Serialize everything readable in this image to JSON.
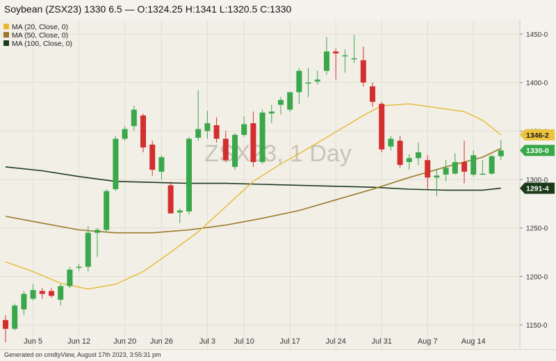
{
  "header": {
    "title": "Soybean (ZSX23) 1330 6.5 — O:1324.25 H:1341 L:1320.5 C:1330"
  },
  "footer": {
    "note": "Generated on cmdtyView, August 17th 2023, 3:55:31 pm"
  },
  "chart_data": {
    "type": "candlestick",
    "watermark": "ZSX23, 1 Day",
    "legend": [
      {
        "label": "MA (20, Close, 0)",
        "color": "#e8b830"
      },
      {
        "label": "MA (50, Close, 0)",
        "color": "#9a7a28"
      },
      {
        "label": "MA (100, Close, 0)",
        "color": "#1a3a1a"
      }
    ],
    "y_axis": {
      "min": 1125,
      "max": 1465,
      "ticks": [
        "1150-0",
        "1200-0",
        "1250-0",
        "1300-0",
        "1350-0",
        "1400-0",
        "1450-0"
      ]
    },
    "x_ticks": [
      {
        "index": 3,
        "label": "Jun 5"
      },
      {
        "index": 8,
        "label": "Jun 12"
      },
      {
        "index": 13,
        "label": "Jun 20"
      },
      {
        "index": 17,
        "label": "Jun 26"
      },
      {
        "index": 22,
        "label": "Jul 3"
      },
      {
        "index": 26,
        "label": "Jul 10"
      },
      {
        "index": 31,
        "label": "Jul 17"
      },
      {
        "index": 36,
        "label": "Jul 24"
      },
      {
        "index": 41,
        "label": "Jul 31"
      },
      {
        "index": 46,
        "label": "Aug 7"
      },
      {
        "index": 51,
        "label": "Aug 14"
      }
    ],
    "candles": [
      {
        "o": 1155,
        "h": 1160,
        "l": 1132,
        "c": 1146
      },
      {
        "o": 1146,
        "h": 1172,
        "l": 1144,
        "c": 1170
      },
      {
        "o": 1166,
        "h": 1185,
        "l": 1160,
        "c": 1182
      },
      {
        "o": 1177,
        "h": 1192,
        "l": 1175,
        "c": 1186
      },
      {
        "o": 1185,
        "h": 1188,
        "l": 1177,
        "c": 1182
      },
      {
        "o": 1185,
        "h": 1188,
        "l": 1178,
        "c": 1180
      },
      {
        "o": 1176,
        "h": 1192,
        "l": 1170,
        "c": 1190
      },
      {
        "o": 1190,
        "h": 1210,
        "l": 1188,
        "c": 1207
      },
      {
        "o": 1210,
        "h": 1213,
        "l": 1206,
        "c": 1210
      },
      {
        "o": 1210,
        "h": 1252,
        "l": 1205,
        "c": 1245
      },
      {
        "o": 1245,
        "h": 1250,
        "l": 1220,
        "c": 1248
      },
      {
        "o": 1248,
        "h": 1290,
        "l": 1246,
        "c": 1288
      },
      {
        "o": 1290,
        "h": 1345,
        "l": 1288,
        "c": 1342
      },
      {
        "o": 1342,
        "h": 1355,
        "l": 1340,
        "c": 1352
      },
      {
        "o": 1355,
        "h": 1376,
        "l": 1350,
        "c": 1372
      },
      {
        "o": 1366,
        "h": 1368,
        "l": 1328,
        "c": 1333
      },
      {
        "o": 1336,
        "h": 1340,
        "l": 1304,
        "c": 1310
      },
      {
        "o": 1308,
        "h": 1325,
        "l": 1300,
        "c": 1323
      },
      {
        "o": 1294,
        "h": 1298,
        "l": 1266,
        "c": 1265
      },
      {
        "o": 1266,
        "h": 1270,
        "l": 1255,
        "c": 1268
      },
      {
        "o": 1267,
        "h": 1344,
        "l": 1264,
        "c": 1342
      },
      {
        "o": 1343,
        "h": 1392,
        "l": 1340,
        "c": 1352
      },
      {
        "o": 1350,
        "h": 1371,
        "l": 1342,
        "c": 1358
      },
      {
        "o": 1356,
        "h": 1364,
        "l": 1338,
        "c": 1342
      },
      {
        "o": 1342,
        "h": 1350,
        "l": 1318,
        "c": 1320
      },
      {
        "o": 1313,
        "h": 1348,
        "l": 1310,
        "c": 1346
      },
      {
        "o": 1346,
        "h": 1365,
        "l": 1344,
        "c": 1357
      },
      {
        "o": 1358,
        "h": 1370,
        "l": 1313,
        "c": 1318
      },
      {
        "o": 1318,
        "h": 1372,
        "l": 1316,
        "c": 1369
      },
      {
        "o": 1368,
        "h": 1377,
        "l": 1358,
        "c": 1370
      },
      {
        "o": 1377,
        "h": 1385,
        "l": 1367,
        "c": 1382
      },
      {
        "o": 1372,
        "h": 1390,
        "l": 1370,
        "c": 1390
      },
      {
        "o": 1390,
        "h": 1415,
        "l": 1378,
        "c": 1412
      },
      {
        "o": 1400,
        "h": 1415,
        "l": 1385,
        "c": 1400
      },
      {
        "o": 1401,
        "h": 1412,
        "l": 1398,
        "c": 1403
      },
      {
        "o": 1412,
        "h": 1447,
        "l": 1408,
        "c": 1432
      },
      {
        "o": 1432,
        "h": 1435,
        "l": 1403,
        "c": 1430
      },
      {
        "o": 1428,
        "h": 1434,
        "l": 1410,
        "c": 1428
      },
      {
        "o": 1425,
        "h": 1449,
        "l": 1420,
        "c": 1425
      },
      {
        "o": 1423,
        "h": 1437,
        "l": 1396,
        "c": 1400
      },
      {
        "o": 1396,
        "h": 1400,
        "l": 1375,
        "c": 1380
      },
      {
        "o": 1378,
        "h": 1380,
        "l": 1328,
        "c": 1331
      },
      {
        "o": 1334,
        "h": 1345,
        "l": 1330,
        "c": 1342
      },
      {
        "o": 1340,
        "h": 1345,
        "l": 1312,
        "c": 1315
      },
      {
        "o": 1318,
        "h": 1326,
        "l": 1310,
        "c": 1322
      },
      {
        "o": 1322,
        "h": 1338,
        "l": 1315,
        "c": 1328
      },
      {
        "o": 1320,
        "h": 1325,
        "l": 1290,
        "c": 1302
      },
      {
        "o": 1302,
        "h": 1311,
        "l": 1283,
        "c": 1304
      },
      {
        "o": 1305,
        "h": 1320,
        "l": 1298,
        "c": 1312
      },
      {
        "o": 1306,
        "h": 1327,
        "l": 1305,
        "c": 1318
      },
      {
        "o": 1318,
        "h": 1340,
        "l": 1296,
        "c": 1308
      },
      {
        "o": 1305,
        "h": 1330,
        "l": 1303,
        "c": 1325
      },
      {
        "o": 1305,
        "h": 1320,
        "l": 1305,
        "c": 1306
      },
      {
        "o": 1306,
        "h": 1325,
        "l": 1305,
        "c": 1324
      },
      {
        "o": 1324,
        "h": 1341,
        "l": 1320,
        "c": 1330
      }
    ],
    "ma20": [
      [
        0,
        1215
      ],
      [
        3,
        1205
      ],
      [
        6,
        1193
      ],
      [
        9,
        1187
      ],
      [
        12,
        1192
      ],
      [
        15,
        1205
      ],
      [
        18,
        1225
      ],
      [
        21,
        1246
      ],
      [
        24,
        1272
      ],
      [
        27,
        1298
      ],
      [
        30,
        1316
      ],
      [
        33,
        1332
      ],
      [
        36,
        1349
      ],
      [
        39,
        1366
      ],
      [
        41,
        1376
      ],
      [
        44,
        1378
      ],
      [
        47,
        1374
      ],
      [
        50,
        1370
      ],
      [
        52,
        1361
      ],
      [
        54,
        1346
      ]
    ],
    "ma50": [
      [
        0,
        1262
      ],
      [
        4,
        1255
      ],
      [
        8,
        1248
      ],
      [
        12,
        1245
      ],
      [
        16,
        1245
      ],
      [
        20,
        1248
      ],
      [
        24,
        1253
      ],
      [
        28,
        1260
      ],
      [
        32,
        1268
      ],
      [
        36,
        1279
      ],
      [
        40,
        1290
      ],
      [
        44,
        1302
      ],
      [
        48,
        1313
      ],
      [
        52,
        1323
      ],
      [
        54,
        1332
      ]
    ],
    "ma100": [
      [
        0,
        1313
      ],
      [
        4,
        1309
      ],
      [
        8,
        1303
      ],
      [
        12,
        1298
      ],
      [
        16,
        1297
      ],
      [
        20,
        1296
      ],
      [
        24,
        1296
      ],
      [
        28,
        1295
      ],
      [
        32,
        1294
      ],
      [
        36,
        1293
      ],
      [
        40,
        1292
      ],
      [
        44,
        1290
      ],
      [
        48,
        1289
      ],
      [
        52,
        1289
      ],
      [
        54,
        1291
      ]
    ],
    "price_labels": [
      {
        "value": 1346,
        "text": "1346-2",
        "color": "#ecc33e",
        "text_color": "#1a1a1a"
      },
      {
        "value": 1330,
        "text": "1330-0",
        "color": "#3aa84a",
        "text_color": "#ffffff"
      },
      {
        "value": 1291,
        "text": "1291-4",
        "color": "#1a3a1a",
        "text_color": "#ffffff"
      }
    ],
    "colors": {
      "up": "#3aa84a",
      "down": "#d32f2f",
      "background": "#f2efe7",
      "grid": "#e2ded4"
    }
  }
}
